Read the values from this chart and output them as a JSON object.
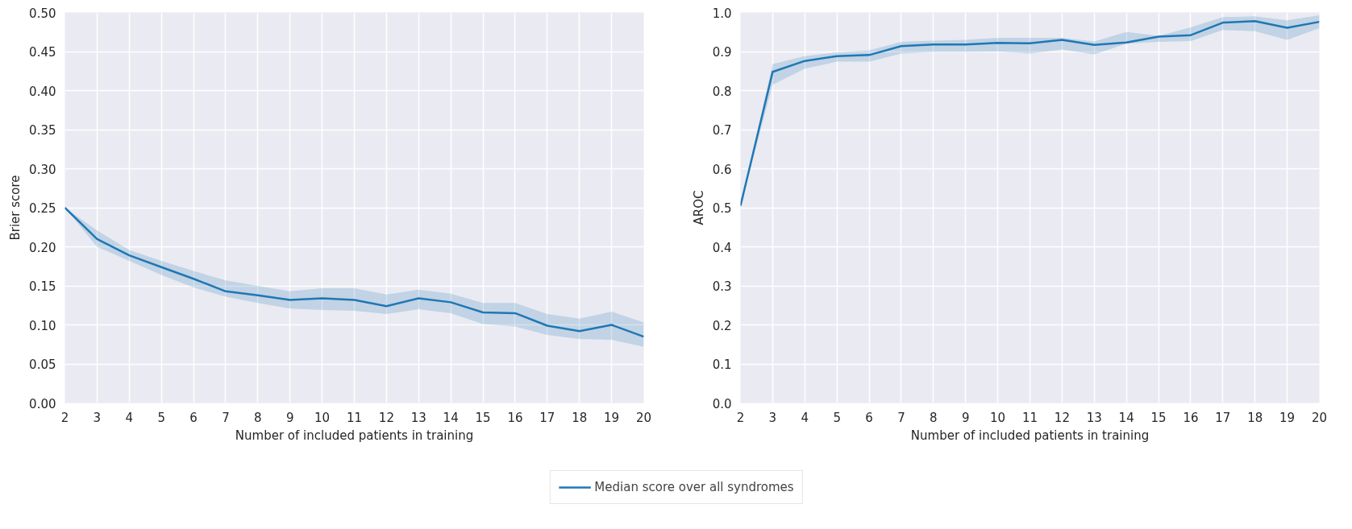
{
  "chart_data": [
    {
      "type": "line",
      "xlabel": "Number of included patients in training",
      "ylabel": "Brier score",
      "x": [
        2,
        3,
        4,
        5,
        6,
        7,
        8,
        9,
        10,
        11,
        12,
        13,
        14,
        15,
        16,
        17,
        18,
        19,
        20
      ],
      "series": [
        {
          "color": "#1f77b4",
          "values": [
            0.25,
            0.21,
            0.189,
            0.174,
            0.159,
            0.143,
            0.138,
            0.132,
            0.134,
            0.132,
            0.124,
            0.134,
            0.129,
            0.116,
            0.115,
            0.099,
            0.092,
            0.1,
            0.085
          ],
          "lower": [
            0.25,
            0.2,
            0.182,
            0.164,
            0.148,
            0.136,
            0.128,
            0.121,
            0.119,
            0.118,
            0.114,
            0.12,
            0.115,
            0.101,
            0.098,
            0.087,
            0.082,
            0.081,
            0.072
          ],
          "upper": [
            0.25,
            0.221,
            0.196,
            0.182,
            0.169,
            0.157,
            0.15,
            0.143,
            0.147,
            0.147,
            0.139,
            0.145,
            0.14,
            0.128,
            0.128,
            0.114,
            0.108,
            0.117,
            0.103
          ]
        }
      ],
      "xlim": [
        2,
        20
      ],
      "xticks": [
        2,
        3,
        4,
        5,
        6,
        7,
        8,
        9,
        10,
        11,
        12,
        13,
        14,
        15,
        16,
        17,
        18,
        19,
        20
      ],
      "ylim": [
        0,
        0.5
      ],
      "yticks": [
        {
          "value": 0,
          "label": "0.00"
        },
        0.05,
        {
          "value": 0.1,
          "label": "0.10"
        },
        0.15,
        {
          "value": 0.2,
          "label": "0.20"
        },
        0.25,
        {
          "value": 0.3,
          "label": "0.30"
        },
        0.35,
        {
          "value": 0.4,
          "label": "0.40"
        },
        0.45,
        {
          "value": 0.5,
          "label": "0.50"
        }
      ],
      "grid": true,
      "line_style": "solid",
      "marker": "none"
    },
    {
      "type": "line",
      "xlabel": "Number of included patients in training",
      "ylabel": "AROC",
      "x": [
        2,
        3,
        4,
        5,
        6,
        7,
        8,
        9,
        10,
        11,
        12,
        13,
        14,
        15,
        16,
        17,
        18,
        19,
        20
      ],
      "series": [
        {
          "name": "Median score over all syndromes",
          "color": "#1f77b4",
          "values": [
            0.505,
            0.848,
            0.876,
            0.888,
            0.891,
            0.914,
            0.918,
            0.918,
            0.922,
            0.921,
            0.93,
            0.917,
            0.923,
            0.938,
            0.942,
            0.974,
            0.978,
            0.961,
            0.976
          ],
          "lower": [
            0.505,
            0.815,
            0.856,
            0.874,
            0.874,
            0.895,
            0.899,
            0.899,
            0.9,
            0.895,
            0.905,
            0.893,
            0.92,
            0.925,
            0.927,
            0.955,
            0.952,
            0.93,
            0.96
          ],
          "upper": [
            0.505,
            0.868,
            0.888,
            0.898,
            0.903,
            0.925,
            0.928,
            0.93,
            0.935,
            0.935,
            0.935,
            0.926,
            0.95,
            0.94,
            0.962,
            0.988,
            0.99,
            0.98,
            0.993
          ]
        }
      ],
      "xlim": [
        2,
        20
      ],
      "xticks": [
        2,
        3,
        4,
        5,
        6,
        7,
        8,
        9,
        10,
        11,
        12,
        13,
        14,
        15,
        16,
        17,
        18,
        19,
        20
      ],
      "ylim": [
        0,
        1
      ],
      "yticks": [
        {
          "value": 0,
          "label": "0.0"
        },
        0.1,
        0.2,
        0.3,
        0.4,
        0.5,
        0.6,
        0.7,
        0.8,
        0.9,
        {
          "value": 1,
          "label": "1.0"
        }
      ],
      "grid": true,
      "legend": "bottom",
      "line_style": "solid",
      "marker": "none"
    }
  ]
}
